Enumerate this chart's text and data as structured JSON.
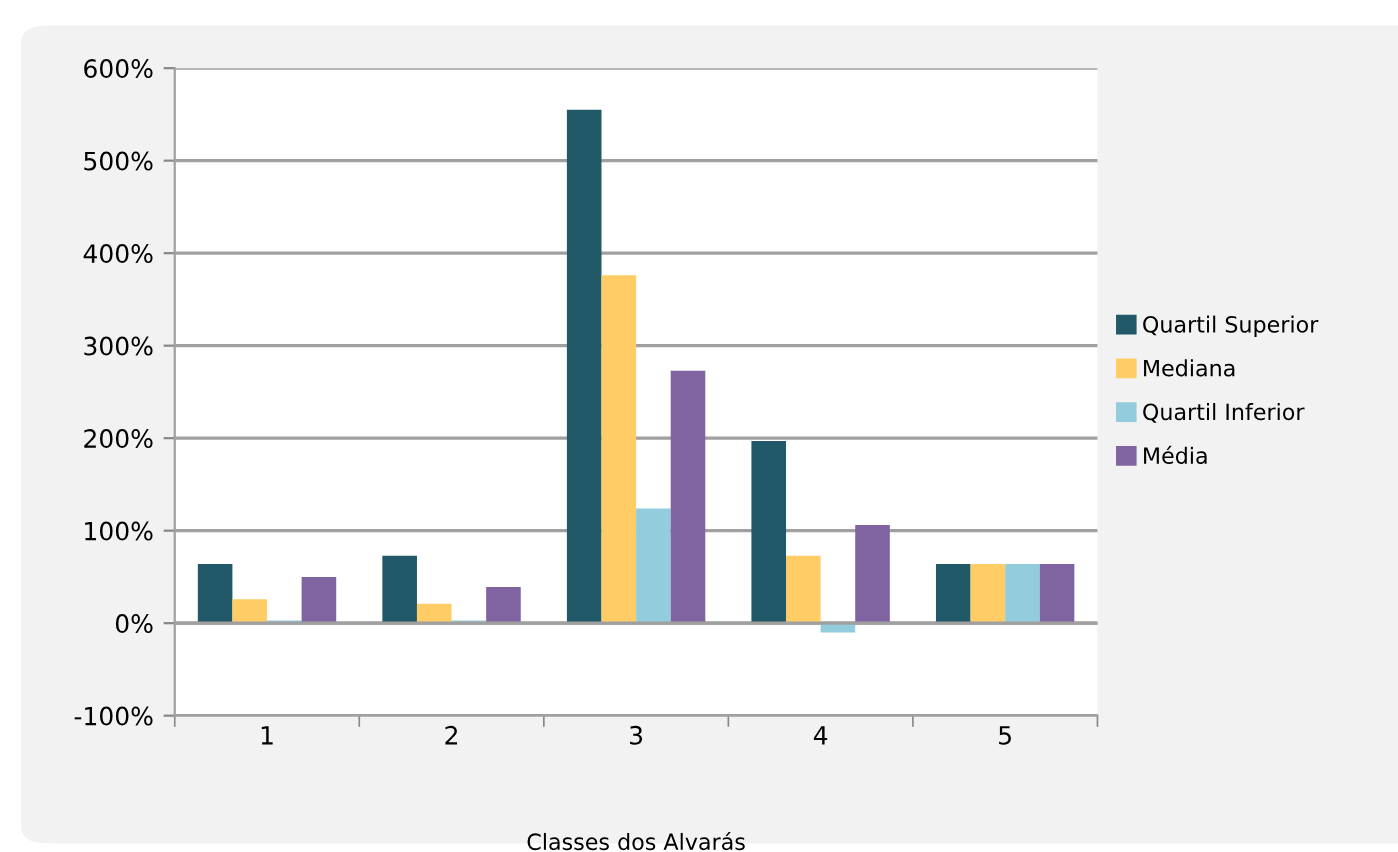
{
  "chart_data": {
    "type": "bar",
    "xlabel": "Classes dos Alvarás",
    "categories": [
      "1",
      "2",
      "3",
      "4",
      "5"
    ],
    "series": [
      {
        "name": "Quartil Superior",
        "color": "#215968",
        "values": [
          64,
          73,
          555,
          197,
          64
        ]
      },
      {
        "name": "Mediana",
        "color": "#ffcc66",
        "values": [
          26,
          21,
          376,
          73,
          64
        ]
      },
      {
        "name": "Quartil Inferior",
        "color": "#93cddd",
        "values": [
          3,
          3,
          124,
          -10,
          64
        ]
      },
      {
        "name": "Média",
        "color": "#8064a2",
        "values": [
          50,
          39,
          273,
          106,
          64
        ]
      }
    ],
    "ylim": [
      -100,
      600
    ],
    "yticks": [
      {
        "value": -100,
        "label": "-100%"
      },
      {
        "value": 0,
        "label": "0%"
      },
      {
        "value": 100,
        "label": "100%"
      },
      {
        "value": 200,
        "label": "200%"
      },
      {
        "value": 300,
        "label": "300%"
      },
      {
        "value": 400,
        "label": "400%"
      },
      {
        "value": 500,
        "label": "500%"
      },
      {
        "value": 600,
        "label": "600%"
      }
    ],
    "grid": "y",
    "legend": "right"
  }
}
